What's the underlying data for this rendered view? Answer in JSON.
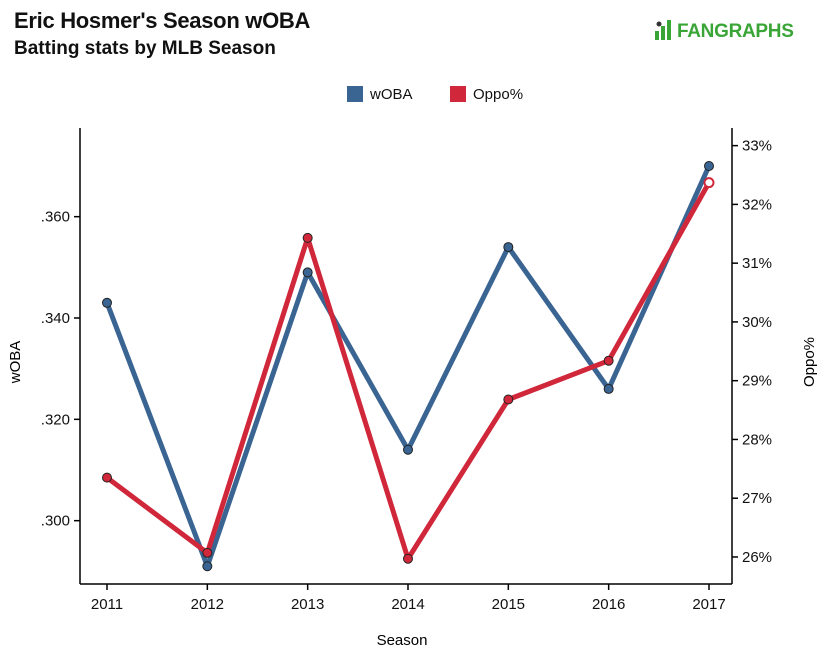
{
  "header": {
    "title": "Eric Hosmer's Season wOBA",
    "subtitle": "Batting stats by MLB Season",
    "brand": "FANGRAPHS",
    "brand_icon": "fangraphs-batter-logo"
  },
  "colors": {
    "woba": "#3a6592",
    "oppo": "#d0283a",
    "brand": "#3aa537",
    "axis": "#000000",
    "gridline": "#c8c8c8"
  },
  "chart_data": {
    "type": "line",
    "title": "Eric Hosmer's Season wOBA",
    "subtitle": "Batting stats by MLB Season",
    "xlabel": "Season",
    "ylabel_left": "wOBA",
    "ylabel_right": "Oppo%",
    "categories": [
      "2011",
      "2012",
      "2013",
      "2014",
      "2015",
      "2016",
      "2017"
    ],
    "y_left": {
      "min": 0.2875,
      "max": 0.3775,
      "ticks": [
        0.3,
        0.32,
        0.34,
        0.36
      ],
      "tick_labels": [
        ".300",
        ".320",
        ".340",
        ".360"
      ]
    },
    "y_right": {
      "min": 25.54,
      "max": 33.3,
      "ticks": [
        26,
        27,
        28,
        29,
        30,
        31,
        32,
        33
      ],
      "tick_labels": [
        "26%",
        "27%",
        "28%",
        "29%",
        "30%",
        "31%",
        "32%",
        "33%"
      ]
    },
    "series": [
      {
        "name": "wOBA",
        "axis": "left",
        "color": "#3a6592",
        "values": [
          0.343,
          0.291,
          0.349,
          0.314,
          0.354,
          0.326,
          0.37
        ]
      },
      {
        "name": "Oppo%",
        "axis": "right",
        "color": "#d0283a",
        "values": [
          27.35,
          26.07,
          31.43,
          25.97,
          28.68,
          29.34,
          32.37
        ]
      }
    ],
    "legend_position": "top-center",
    "grid": false
  }
}
